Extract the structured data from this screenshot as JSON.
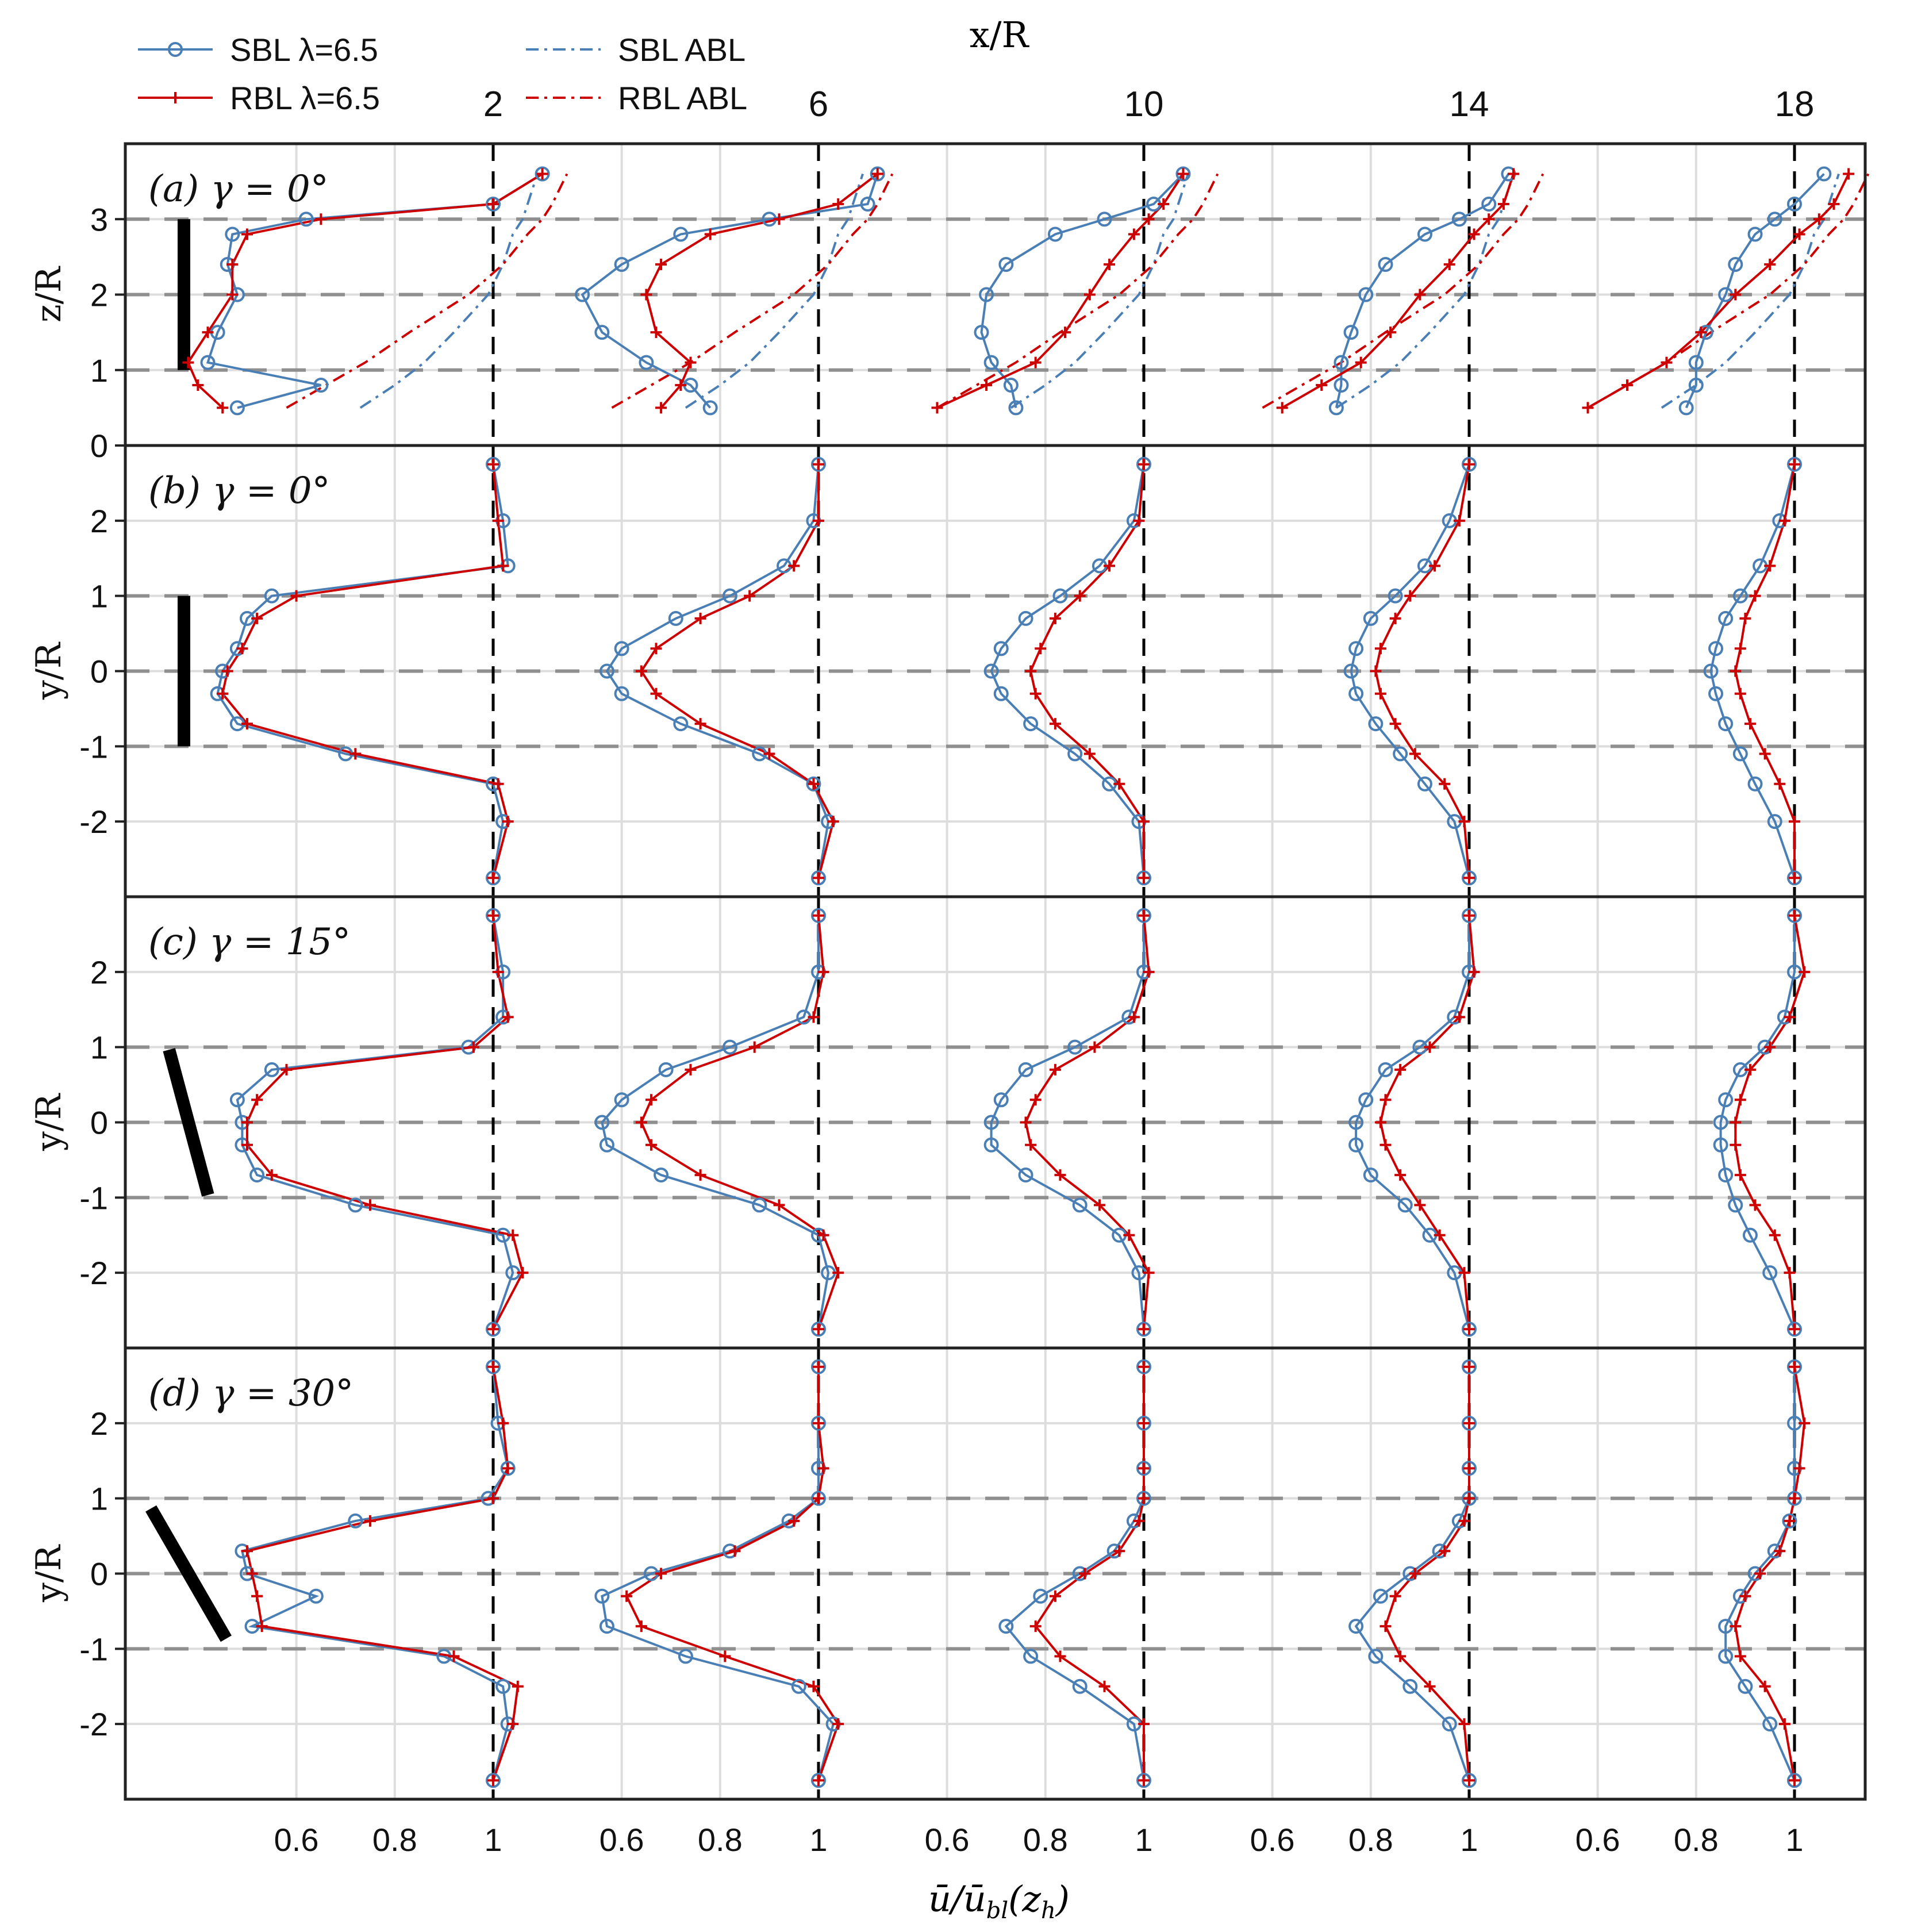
{
  "figure": {
    "top_axis_label": "x/R",
    "bottom_axis_label": "ū/ū",
    "bottom_axis_label_sub": "bl",
    "bottom_axis_label_tail": "(z",
    "bottom_axis_label_tail_sub": "h",
    "bottom_axis_label_close": ")"
  },
  "legend": [
    {
      "key": "sbl_tsr",
      "label": "SBL λ=6.5",
      "color": "#4a7fb5",
      "style": "solid",
      "marker": "circle"
    },
    {
      "key": "rbl_tsr",
      "label": "RBL λ=6.5",
      "color": "#cc0000",
      "style": "solid",
      "marker": "plus"
    },
    {
      "key": "sbl_abl",
      "label": "SBL ABL",
      "color": "#4a7fb5",
      "style": "dashdot",
      "marker": "none"
    },
    {
      "key": "rbl_abl",
      "label": "RBL ABL",
      "color": "#cc0000",
      "style": "dashdot",
      "marker": "none"
    }
  ],
  "chart_data": {
    "type": "line",
    "stations_xR": [
      2,
      6,
      10,
      14,
      18
    ],
    "station_labels": [
      "2",
      "6",
      "10",
      "14",
      "18"
    ],
    "offset_ticks": [
      "0.6",
      "0.8",
      "1"
    ],
    "offset_range": [
      0.55,
      1.15
    ],
    "panels": [
      {
        "label": "(a) γ = 0°",
        "ylabel": "z/R",
        "ylim": [
          0,
          4
        ],
        "yticks": [
          0,
          1,
          2,
          3
        ],
        "hlines": [
          1,
          2,
          3
        ],
        "turbine_span": [
          1,
          3
        ],
        "turbine_tilt": 0,
        "y": [
          0.5,
          0.8,
          1.1,
          1.5,
          2.0,
          2.4,
          2.8,
          3.0,
          3.2,
          3.6
        ],
        "sbl": [
          [
            0.48,
            0.65,
            0.42,
            0.44,
            0.48,
            0.46,
            0.47,
            0.62,
            1.0,
            1.1
          ],
          [
            0.78,
            0.74,
            0.65,
            0.56,
            0.52,
            0.6,
            0.72,
            0.9,
            1.1,
            1.12
          ],
          [
            0.74,
            0.73,
            0.69,
            0.67,
            0.68,
            0.72,
            0.82,
            0.92,
            1.02,
            1.08
          ],
          [
            0.73,
            0.74,
            0.74,
            0.76,
            0.79,
            0.83,
            0.91,
            0.98,
            1.04,
            1.08
          ],
          [
            0.78,
            0.8,
            0.8,
            0.82,
            0.86,
            0.88,
            0.92,
            0.96,
            1.0,
            1.06
          ]
        ],
        "rbl": [
          [
            0.45,
            0.4,
            0.38,
            0.42,
            0.47,
            0.47,
            0.5,
            0.65,
            1.0,
            1.1
          ],
          [
            0.68,
            0.72,
            0.74,
            0.67,
            0.65,
            0.68,
            0.78,
            0.92,
            1.04,
            1.12
          ],
          [
            0.58,
            0.68,
            0.78,
            0.84,
            0.89,
            0.93,
            0.98,
            1.01,
            1.04,
            1.08
          ],
          [
            0.62,
            0.7,
            0.78,
            0.84,
            0.9,
            0.96,
            1.01,
            1.04,
            1.07,
            1.09
          ],
          [
            0.58,
            0.66,
            0.74,
            0.81,
            0.88,
            0.95,
            1.01,
            1.05,
            1.08,
            1.11
          ]
        ],
        "sbl_abl": [
          0.73,
          0.8,
          0.86,
          0.92,
          0.99,
          1.02,
          1.04,
          1.06,
          1.07,
          1.09
        ],
        "rbl_abl": [
          0.58,
          0.66,
          0.74,
          0.83,
          0.95,
          1.02,
          1.07,
          1.1,
          1.12,
          1.15
        ]
      },
      {
        "label": "(b) γ = 0°",
        "ylabel": "y/R",
        "ylim": [
          -3,
          3
        ],
        "yticks": [
          -2,
          -1,
          0,
          1,
          2
        ],
        "hlines": [
          -1,
          0,
          1
        ],
        "turbine_span": [
          -1,
          1
        ],
        "turbine_tilt": 0,
        "y": [
          -2.75,
          -2.0,
          -1.5,
          -1.1,
          -0.7,
          -0.3,
          0.0,
          0.3,
          0.7,
          1.0,
          1.4,
          2.0,
          2.75
        ],
        "sbl": [
          [
            1.0,
            1.02,
            1.0,
            0.7,
            0.48,
            0.44,
            0.45,
            0.48,
            0.5,
            0.55,
            1.03,
            1.02,
            1.0
          ],
          [
            1.0,
            1.02,
            0.99,
            0.88,
            0.72,
            0.6,
            0.57,
            0.6,
            0.71,
            0.82,
            0.93,
            0.99,
            1.0
          ],
          [
            1.0,
            0.99,
            0.93,
            0.86,
            0.77,
            0.71,
            0.69,
            0.71,
            0.76,
            0.83,
            0.91,
            0.98,
            1.0
          ],
          [
            1.0,
            0.97,
            0.91,
            0.86,
            0.81,
            0.77,
            0.76,
            0.77,
            0.8,
            0.85,
            0.91,
            0.96,
            1.0
          ],
          [
            1.0,
            0.96,
            0.92,
            0.89,
            0.86,
            0.84,
            0.83,
            0.84,
            0.86,
            0.89,
            0.93,
            0.97,
            1.0
          ]
        ],
        "rbl": [
          [
            1.0,
            1.03,
            1.01,
            0.72,
            0.5,
            0.45,
            0.46,
            0.49,
            0.52,
            0.6,
            1.02,
            1.01,
            1.0
          ],
          [
            1.0,
            1.03,
            0.99,
            0.9,
            0.76,
            0.67,
            0.64,
            0.67,
            0.76,
            0.86,
            0.95,
            1.0,
            1.0
          ],
          [
            1.0,
            1.0,
            0.95,
            0.89,
            0.82,
            0.78,
            0.77,
            0.79,
            0.82,
            0.87,
            0.93,
            0.99,
            1.0
          ],
          [
            1.0,
            0.99,
            0.95,
            0.89,
            0.85,
            0.82,
            0.81,
            0.82,
            0.85,
            0.88,
            0.93,
            0.98,
            1.0
          ],
          [
            1.0,
            1.0,
            0.97,
            0.94,
            0.91,
            0.89,
            0.88,
            0.89,
            0.9,
            0.92,
            0.95,
            0.98,
            1.0
          ]
        ]
      },
      {
        "label": "(c) γ = 15°",
        "ylabel": "y/R",
        "ylim": [
          -3,
          3
        ],
        "yticks": [
          -2,
          -1,
          0,
          1,
          2
        ],
        "hlines": [
          -1,
          0,
          1
        ],
        "turbine_span": [
          -1,
          1
        ],
        "turbine_tilt": 15,
        "y": [
          -2.75,
          -2.0,
          -1.5,
          -1.1,
          -0.7,
          -0.3,
          0.0,
          0.3,
          0.7,
          1.0,
          1.4,
          2.0,
          2.75
        ],
        "sbl": [
          [
            1.0,
            1.04,
            1.02,
            0.72,
            0.52,
            0.49,
            0.49,
            0.48,
            0.55,
            0.95,
            1.02,
            1.02,
            1.0
          ],
          [
            1.0,
            1.02,
            1.0,
            0.88,
            0.68,
            0.57,
            0.56,
            0.6,
            0.69,
            0.82,
            0.97,
            1.0,
            1.0
          ],
          [
            1.0,
            0.99,
            0.95,
            0.87,
            0.76,
            0.69,
            0.69,
            0.71,
            0.76,
            0.86,
            0.97,
            1.0,
            1.0
          ],
          [
            1.0,
            0.97,
            0.92,
            0.87,
            0.8,
            0.77,
            0.77,
            0.79,
            0.83,
            0.9,
            0.97,
            1.0,
            1.0
          ],
          [
            1.0,
            0.95,
            0.91,
            0.88,
            0.86,
            0.85,
            0.85,
            0.86,
            0.89,
            0.94,
            0.98,
            1.0,
            1.0
          ]
        ],
        "rbl": [
          [
            1.0,
            1.06,
            1.04,
            0.75,
            0.55,
            0.5,
            0.5,
            0.52,
            0.58,
            0.96,
            1.03,
            1.01,
            1.0
          ],
          [
            1.0,
            1.04,
            1.01,
            0.92,
            0.76,
            0.66,
            0.64,
            0.66,
            0.74,
            0.87,
            0.99,
            1.01,
            1.0
          ],
          [
            1.0,
            1.01,
            0.97,
            0.91,
            0.83,
            0.77,
            0.76,
            0.78,
            0.82,
            0.9,
            0.98,
            1.01,
            1.0
          ],
          [
            1.0,
            0.99,
            0.94,
            0.9,
            0.86,
            0.83,
            0.82,
            0.83,
            0.86,
            0.92,
            0.98,
            1.01,
            1.0
          ],
          [
            1.0,
            0.99,
            0.96,
            0.92,
            0.89,
            0.88,
            0.88,
            0.89,
            0.91,
            0.95,
            0.99,
            1.02,
            1.0
          ]
        ]
      },
      {
        "label": "(d) γ = 30°",
        "ylabel": "y/R",
        "ylim": [
          -3,
          3
        ],
        "yticks": [
          -2,
          -1,
          0,
          1,
          2
        ],
        "hlines": [
          -1,
          0,
          1
        ],
        "turbine_span": [
          -1,
          1
        ],
        "turbine_tilt": 30,
        "y": [
          -2.75,
          -2.0,
          -1.5,
          -1.1,
          -0.7,
          -0.3,
          0.0,
          0.3,
          0.7,
          1.0,
          1.4,
          2.0,
          2.75
        ],
        "sbl": [
          [
            1.0,
            1.03,
            1.02,
            0.9,
            0.51,
            0.64,
            0.5,
            0.49,
            0.72,
            0.99,
            1.03,
            1.01,
            1.0
          ],
          [
            1.0,
            1.03,
            0.96,
            0.73,
            0.57,
            0.56,
            0.66,
            0.82,
            0.94,
            1.0,
            1.0,
            1.0,
            1.0
          ],
          [
            1.0,
            0.98,
            0.87,
            0.77,
            0.72,
            0.79,
            0.87,
            0.94,
            0.98,
            1.0,
            1.0,
            1.0,
            1.0
          ],
          [
            1.0,
            0.96,
            0.88,
            0.81,
            0.77,
            0.82,
            0.88,
            0.94,
            0.98,
            1.0,
            1.0,
            1.0,
            1.0
          ],
          [
            1.0,
            0.95,
            0.9,
            0.86,
            0.86,
            0.89,
            0.92,
            0.96,
            0.99,
            1.0,
            1.0,
            1.0,
            1.0
          ]
        ],
        "rbl": [
          [
            1.0,
            1.04,
            1.05,
            0.92,
            0.53,
            0.52,
            0.51,
            0.5,
            0.75,
            1.0,
            1.03,
            1.02,
            1.0
          ],
          [
            1.0,
            1.04,
            0.99,
            0.81,
            0.64,
            0.61,
            0.68,
            0.83,
            0.95,
            1.0,
            1.01,
            1.0,
            1.0
          ],
          [
            1.0,
            1.0,
            0.92,
            0.83,
            0.78,
            0.82,
            0.88,
            0.95,
            0.99,
            1.0,
            1.0,
            1.0,
            1.0
          ],
          [
            1.0,
            0.99,
            0.92,
            0.86,
            0.83,
            0.85,
            0.89,
            0.95,
            0.99,
            1.0,
            1.0,
            1.0,
            1.0
          ],
          [
            1.0,
            0.98,
            0.94,
            0.89,
            0.88,
            0.9,
            0.93,
            0.97,
            0.99,
            1.0,
            1.01,
            1.02,
            1.0
          ]
        ]
      }
    ]
  }
}
